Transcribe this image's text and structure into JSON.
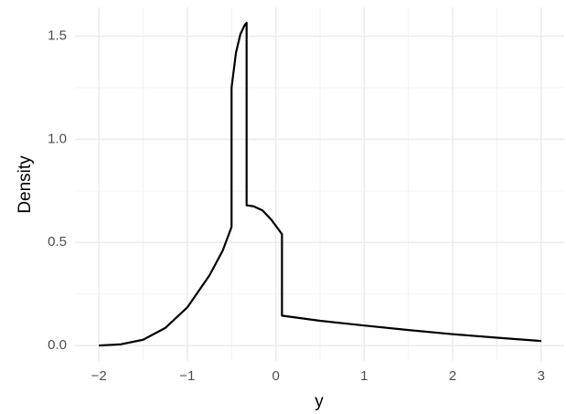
{
  "chart_data": {
    "type": "line",
    "x_label": "y",
    "y_label": "Density",
    "x": [
      -2,
      -1.75,
      -1.5,
      -1.25,
      -1,
      -0.75,
      -0.6,
      -0.5,
      -0.5,
      -0.45,
      -0.4,
      -0.35,
      -0.33,
      -0.33,
      -0.25,
      -0.15,
      -0.05,
      0.07,
      0.07,
      0.5,
      1,
      1.5,
      2,
      2.5,
      3
    ],
    "series": [
      {
        "color": "#000000",
        "values": [
          0,
          0.006,
          0.028,
          0.085,
          0.185,
          0.34,
          0.46,
          0.575,
          1.25,
          1.42,
          1.51,
          1.555,
          1.565,
          0.68,
          0.675,
          0.655,
          0.61,
          0.54,
          0.145,
          0.12,
          0.097,
          0.075,
          0.055,
          0.038,
          0.022
        ]
      }
    ],
    "xlim": [
      -2.27,
      3.26
    ],
    "ylim": [
      -0.075,
      1.64
    ],
    "xticks": [
      {
        "value": -2,
        "label": "−2"
      },
      {
        "value": -1,
        "label": "−1"
      },
      0,
      1,
      2,
      3
    ],
    "yticks": [
      {
        "value": 0,
        "label": "0.0"
      },
      0.5,
      {
        "value": 1,
        "label": "1.0"
      },
      1.5
    ],
    "x_minor_ticks": [
      -1.5,
      -0.5,
      0.5,
      1.5,
      2.5
    ],
    "y_minor_ticks": [
      0.25,
      0.75,
      1.25
    ],
    "grid": true
  }
}
